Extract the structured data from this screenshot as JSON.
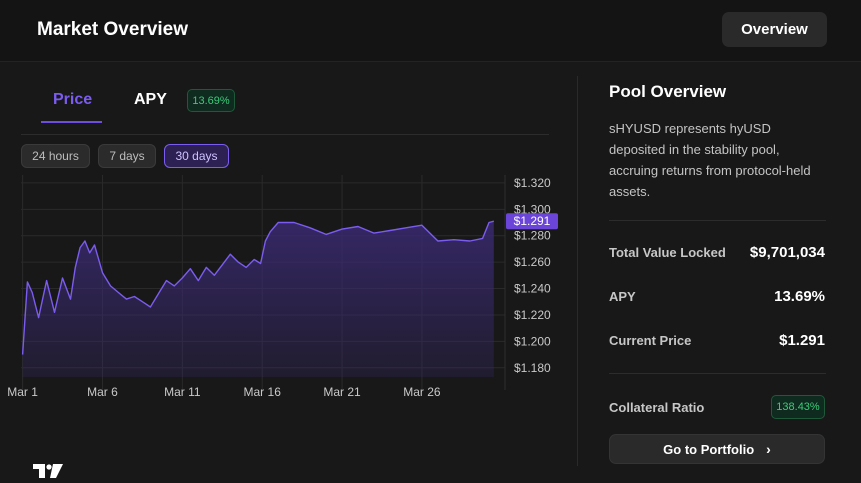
{
  "header": {
    "title": "Market Overview",
    "overview_button": "Overview"
  },
  "tabs": {
    "price": "Price",
    "apy": "APY",
    "apy_badge": "13.69%"
  },
  "ranges": [
    "24 hours",
    "7 days",
    "30 days"
  ],
  "active_range": "30 days",
  "chart_data": {
    "type": "area",
    "title": "",
    "x_ticks": [
      "Mar 1",
      "Mar 6",
      "Mar 11",
      "Mar 16",
      "Mar 21",
      "Mar 26"
    ],
    "y_ticks": [
      "$1.320",
      "$1.300",
      "$1.280",
      "$1.260",
      "$1.240",
      "$1.220",
      "$1.200",
      "$1.180"
    ],
    "ylim": [
      1.173,
      1.326
    ],
    "xlim": [
      0.9,
      31.2
    ],
    "x": [
      1.0,
      1.3,
      1.6,
      2.0,
      2.5,
      3.0,
      3.5,
      4.0,
      4.3,
      4.6,
      4.9,
      5.2,
      5.5,
      6.0,
      6.5,
      7.0,
      7.5,
      8.0,
      8.5,
      9.0,
      9.5,
      10.0,
      10.5,
      11.0,
      11.5,
      12.0,
      12.5,
      13.0,
      13.5,
      14.0,
      14.5,
      15.0,
      15.5,
      15.9,
      16.2,
      16.5,
      17.0,
      18.0,
      19.0,
      20.0,
      21.0,
      22.0,
      23.0,
      24.0,
      25.0,
      26.0,
      27.0,
      28.0,
      29.0,
      29.8,
      30.2,
      30.5
    ],
    "values": [
      1.19,
      1.245,
      1.237,
      1.218,
      1.246,
      1.222,
      1.248,
      1.232,
      1.256,
      1.271,
      1.276,
      1.267,
      1.273,
      1.252,
      1.242,
      1.237,
      1.232,
      1.234,
      1.23,
      1.226,
      1.236,
      1.246,
      1.242,
      1.248,
      1.255,
      1.246,
      1.256,
      1.25,
      1.258,
      1.266,
      1.26,
      1.256,
      1.262,
      1.259,
      1.276,
      1.283,
      1.29,
      1.29,
      1.286,
      1.281,
      1.285,
      1.287,
      1.282,
      1.284,
      1.286,
      1.288,
      1.276,
      1.277,
      1.276,
      1.278,
      1.29,
      1.291
    ],
    "last_price_label": "$1.291",
    "colors": {
      "line": "#7b5cf0",
      "fill": "#3a2a72",
      "label_bg": "#6b45d8"
    }
  },
  "pool": {
    "title": "Pool Overview",
    "description": "sHYUSD represents hyUSD deposited in the stability pool, accruing returns from protocol-held assets.",
    "stats": [
      {
        "label": "Total Value Locked",
        "value": "$9,701,034"
      },
      {
        "label": "APY",
        "value": "13.69%"
      },
      {
        "label": "Current Price",
        "value": "$1.291"
      }
    ],
    "collateral_label": "Collateral Ratio",
    "collateral_value": "138.43%",
    "portfolio_button": "Go to Portfolio"
  }
}
